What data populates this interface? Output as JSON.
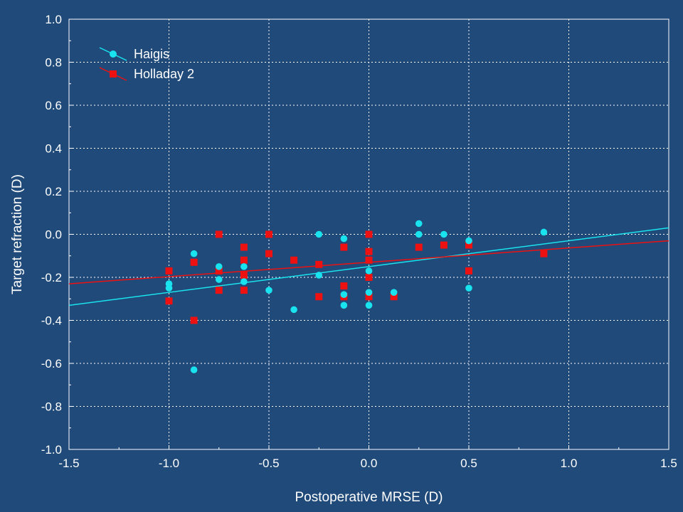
{
  "chart_data": {
    "type": "scatter",
    "title": "",
    "xlabel": "Postoperative MRSE (D)",
    "ylabel": "Target refraction (D)",
    "xlim": [
      -1.5,
      1.5
    ],
    "ylim": [
      -1.0,
      1.0
    ],
    "x_ticks": [
      "-1.5",
      "-1.0",
      "-0.5",
      "0.0",
      "0.5",
      "1.0",
      "1.5"
    ],
    "y_ticks": [
      "1.0",
      "0.8",
      "0.6",
      "0.4",
      "0.2",
      "0.0",
      "-0.2",
      "-0.4",
      "-0.6",
      "-0.8",
      "-1.0"
    ],
    "grid": true,
    "legend_position": "top-left",
    "series": [
      {
        "name": "Haigis",
        "color": "#19e3ee",
        "marker": "circle",
        "points": [
          [
            -1.0,
            -0.23
          ],
          [
            -1.0,
            -0.25
          ],
          [
            -0.875,
            -0.09
          ],
          [
            -0.875,
            -0.63
          ],
          [
            -0.75,
            -0.15
          ],
          [
            -0.75,
            -0.21
          ],
          [
            -0.625,
            -0.15
          ],
          [
            -0.625,
            -0.22
          ],
          [
            -0.5,
            -0.26
          ],
          [
            -0.375,
            -0.35
          ],
          [
            -0.25,
            0.0
          ],
          [
            -0.25,
            -0.19
          ],
          [
            -0.125,
            -0.02
          ],
          [
            -0.125,
            -0.28
          ],
          [
            -0.125,
            -0.33
          ],
          [
            0.0,
            -0.17
          ],
          [
            0.0,
            -0.27
          ],
          [
            0.0,
            -0.33
          ],
          [
            0.125,
            -0.27
          ],
          [
            0.25,
            0.05
          ],
          [
            0.25,
            0.0
          ],
          [
            0.375,
            0.0
          ],
          [
            0.5,
            -0.03
          ],
          [
            0.5,
            -0.25
          ],
          [
            0.875,
            0.01
          ]
        ],
        "trend": [
          [
            -1.5,
            -0.33
          ],
          [
            1.5,
            0.03
          ]
        ]
      },
      {
        "name": "Holladay 2",
        "color": "#ee1111",
        "marker": "square",
        "points": [
          [
            -1.0,
            -0.17
          ],
          [
            -1.0,
            -0.31
          ],
          [
            -0.875,
            -0.13
          ],
          [
            -0.875,
            -0.4
          ],
          [
            -0.75,
            0.0
          ],
          [
            -0.75,
            -0.17
          ],
          [
            -0.75,
            -0.26
          ],
          [
            -0.625,
            -0.06
          ],
          [
            -0.625,
            -0.12
          ],
          [
            -0.625,
            -0.19
          ],
          [
            -0.625,
            -0.26
          ],
          [
            -0.5,
            0.0
          ],
          [
            -0.5,
            -0.09
          ],
          [
            -0.375,
            -0.12
          ],
          [
            -0.25,
            -0.14
          ],
          [
            -0.25,
            -0.29
          ],
          [
            -0.125,
            -0.06
          ],
          [
            -0.125,
            -0.24
          ],
          [
            -0.125,
            -0.29
          ],
          [
            0.0,
            0.0
          ],
          [
            0.0,
            -0.08
          ],
          [
            0.0,
            -0.12
          ],
          [
            0.0,
            -0.2
          ],
          [
            0.0,
            -0.29
          ],
          [
            0.125,
            -0.29
          ],
          [
            0.25,
            -0.06
          ],
          [
            0.375,
            -0.05
          ],
          [
            0.5,
            -0.05
          ],
          [
            0.5,
            -0.17
          ],
          [
            0.875,
            -0.09
          ]
        ],
        "trend": [
          [
            -1.5,
            -0.23
          ],
          [
            1.5,
            -0.03
          ]
        ]
      }
    ]
  }
}
